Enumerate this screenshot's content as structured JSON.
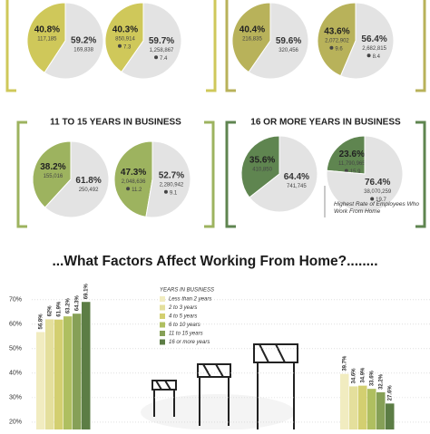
{
  "panels": [
    {
      "color": "#cfc85a",
      "pies": [
        {
          "slices": [
            {
              "value": 40.8,
              "label": "40.8%",
              "count": "117,185"
            },
            {
              "value": 59.2,
              "label": "59.2%",
              "count": "169,838"
            }
          ]
        },
        {
          "slices": [
            {
              "value": 40.3,
              "label": "40.3%",
              "count": "850,914",
              "avg": "7.3"
            },
            {
              "value": 59.7,
              "label": "59.7%",
              "count": "1,258,867",
              "avg": "7.4"
            }
          ]
        }
      ]
    },
    {
      "color": "#b8b25a",
      "pies": [
        {
          "slices": [
            {
              "value": 40.4,
              "label": "40.4%",
              "count": "216,835"
            },
            {
              "value": 59.6,
              "label": "59.6%",
              "count": "320,456"
            }
          ]
        },
        {
          "slices": [
            {
              "value": 43.6,
              "label": "43.6%",
              "count": "2,072,902",
              "avg": "9.6"
            },
            {
              "value": 56.4,
              "label": "56.4%",
              "count": "2,682,815",
              "avg": "8.4"
            }
          ]
        }
      ]
    },
    {
      "color": "#9db35f",
      "title": "11 TO 15 YEARS IN BUSINESS",
      "pies": [
        {
          "slices": [
            {
              "value": 38.2,
              "label": "38.2%",
              "count": "155,016"
            },
            {
              "value": 61.8,
              "label": "61.8%",
              "count": "250,492"
            }
          ]
        },
        {
          "slices": [
            {
              "value": 47.3,
              "label": "47.3%",
              "count": "2,048,636",
              "avg": "11.2"
            },
            {
              "value": 52.7,
              "label": "52.7%",
              "count": "2,280,942",
              "avg": "9.1"
            }
          ]
        }
      ]
    },
    {
      "color": "#5f8550",
      "title": "16 OR MORE YEARS IN BUSINESS",
      "annotation": "Highest Rate of Employees Who Work From Home",
      "pies": [
        {
          "slices": [
            {
              "value": 35.6,
              "label": "35.6%",
              "count": "410,850"
            },
            {
              "value": 64.4,
              "label": "64.4%",
              "count": "741,745"
            }
          ]
        },
        {
          "slices": [
            {
              "value": 23.6,
              "label": "23.6%",
              "count": "11,790,965",
              "avg": "15.9"
            },
            {
              "value": 76.4,
              "label": "76.4%",
              "count": "38,070,259",
              "avg": "19.7"
            }
          ]
        }
      ]
    }
  ],
  "chart_data": {
    "type": "bar",
    "title": "...What Factors Affect Working From Home?........",
    "legend_title": "YEARS IN BUSINESS",
    "categories": [
      null,
      null
    ],
    "ylim": [
      17,
      74
    ],
    "yticks": [
      {
        "value": 20,
        "label": "20%"
      },
      {
        "value": 30,
        "label": "30%"
      },
      {
        "value": 40,
        "label": "40%"
      },
      {
        "value": 50,
        "label": "50%"
      },
      {
        "value": 60,
        "label": "60%"
      },
      {
        "value": 70,
        "label": "70%"
      }
    ],
    "grid": true,
    "series": [
      {
        "name": "Less than 2 years",
        "color": "#f1ecc0",
        "values": [
          56.8,
          39.7
        ],
        "value_labels": [
          "56.8%",
          "39.7%"
        ]
      },
      {
        "name": "2 to 3 years",
        "color": "#e4df9c",
        "values": [
          62,
          34.6
        ],
        "value_labels": [
          "62%",
          "34.6%"
        ]
      },
      {
        "name": "4 to 5 years",
        "color": "#d3cf70",
        "values": [
          61.9,
          34.9
        ],
        "value_labels": [
          "61.9%",
          "34.9%"
        ]
      },
      {
        "name": "6 to 10 years",
        "color": "#afbf60",
        "values": [
          63.2,
          33.6
        ],
        "value_labels": [
          "63.2%",
          "33.6%"
        ]
      },
      {
        "name": "11 to 15 years",
        "color": "#86a057",
        "values": [
          64.3,
          32.2
        ],
        "value_labels": [
          "64.3%",
          "32.2%"
        ]
      },
      {
        "name": "16 or more years",
        "color": "#5c7d45",
        "values": [
          69.1,
          27.6
        ],
        "value_labels": [
          "69.1%",
          "27.6%"
        ]
      }
    ]
  }
}
